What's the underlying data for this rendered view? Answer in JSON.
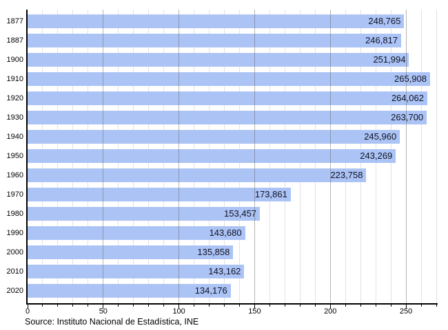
{
  "chart_data": {
    "type": "bar",
    "orientation": "horizontal",
    "title": "",
    "xlabel": "",
    "ylabel": "",
    "categories": [
      "1877",
      "1887",
      "1900",
      "1910",
      "1920",
      "1930",
      "1940",
      "1950",
      "1960",
      "1970",
      "1980",
      "1990",
      "2000",
      "2010",
      "2020"
    ],
    "values": [
      248765,
      246817,
      251994,
      265908,
      264062,
      263700,
      245960,
      243269,
      223758,
      173861,
      153457,
      143680,
      135858,
      143162,
      134176
    ],
    "value_labels": [
      "248,765",
      "246,817",
      "251,994",
      "265,908",
      "264,062",
      "263,700",
      "245,960",
      "243,269",
      "223,758",
      "173,861",
      "153,457",
      "143,680",
      "135,858",
      "143,162",
      "134,176"
    ],
    "x_axis_unit": "thousands",
    "xlim": [
      0,
      270
    ],
    "x_major_ticks": [
      0,
      50,
      100,
      150,
      200,
      250
    ],
    "x_major_tick_labels": [
      "0",
      "50",
      "100",
      "150",
      "200",
      "250"
    ],
    "x_minor_tick_step": 10,
    "grid": "vertical gridlines: minor every 10 (light), major every 50 (darker, drawn over bars)",
    "legend": "none"
  },
  "footer": {
    "source": "Source: Instituto Nacional de Estadística, INE"
  },
  "colors": {
    "background": "#ffffff",
    "bar_fill": "#abc3f5",
    "grid_minor": "#e2e2e2",
    "grid_major": "#696969",
    "axis": "#000000",
    "value_text": "#111122",
    "tick_text": "#000000"
  }
}
